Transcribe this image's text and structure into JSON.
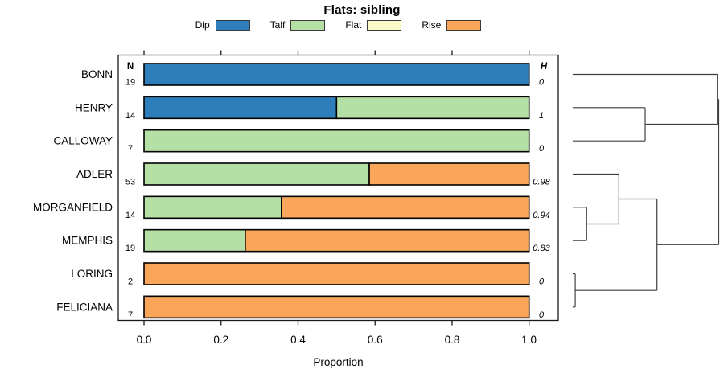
{
  "title": "Flats: sibling",
  "axis": {
    "xlabel": "Proportion",
    "ticks": [
      "0.0",
      "0.2",
      "0.4",
      "0.6",
      "0.8",
      "1.0"
    ],
    "tick_values": [
      0,
      0.2,
      0.4,
      0.6,
      0.8,
      1.0
    ]
  },
  "columns": {
    "n_header": "N",
    "h_header": "H"
  },
  "legend": {
    "items": [
      {
        "label": "Dip",
        "color": "#2F7EBC"
      },
      {
        "label": "Talf",
        "color": "#B4DFA5"
      },
      {
        "label": "Flat",
        "color": "#FBFBC9"
      },
      {
        "label": "Rise",
        "color": "#F9A65A"
      }
    ]
  },
  "colors": {
    "bar_border": "#000000",
    "axis": "#1a1a1a",
    "dendrogram_line": "#3f3f3f",
    "text": "#000000"
  },
  "chart_data": {
    "type": "bar",
    "orientation": "horizontal",
    "stacked": true,
    "title": "Flats: sibling",
    "xlabel": "Proportion",
    "xlim": [
      0,
      1
    ],
    "grid": false,
    "legend_position": "top",
    "categories": [
      "BONN",
      "HENRY",
      "CALLOWAY",
      "ADLER",
      "MORGANFIELD",
      "MEMPHIS",
      "LORING",
      "FELICIANA"
    ],
    "n_values": [
      19,
      14,
      7,
      53,
      14,
      19,
      2,
      7
    ],
    "h_values": [
      "0",
      "1",
      "0",
      "0.98",
      "0.94",
      "0.83",
      "0",
      "0"
    ],
    "series": [
      {
        "name": "Dip",
        "color": "#2F7EBC",
        "values": [
          1,
          0.5,
          0,
          0,
          0,
          0,
          0,
          0
        ]
      },
      {
        "name": "Talf",
        "color": "#B4DFA5",
        "values": [
          0,
          0.5,
          1,
          0.585,
          0.357,
          0.263,
          0,
          0
        ]
      },
      {
        "name": "Flat",
        "color": "#FBFBC9",
        "values": [
          0,
          0,
          0,
          0,
          0,
          0,
          0,
          0
        ]
      },
      {
        "name": "Rise",
        "color": "#F9A65A",
        "values": [
          0,
          0,
          0,
          0.415,
          0.643,
          0.737,
          1,
          1
        ]
      }
    ],
    "dendrogram": {
      "note": "heights are relative merge heights, 0 at leaves, 1 at root",
      "root": {
        "h": 1.0,
        "children": [
          {
            "h": 0.99,
            "children": [
              {
                "leaf": "BONN"
              },
              {
                "h": 0.496,
                "children": [
                  {
                    "leaf": "HENRY"
                  },
                  {
                    "leaf": "CALLOWAY"
                  }
                ]
              }
            ]
          },
          {
            "h": 0.577,
            "children": [
              {
                "h": 0.316,
                "children": [
                  {
                    "leaf": "ADLER"
                  },
                  {
                    "h": 0.095,
                    "children": [
                      {
                        "leaf": "MORGANFIELD"
                      },
                      {
                        "leaf": "MEMPHIS"
                      }
                    ]
                  }
                ]
              },
              {
                "h": 0.017,
                "children": [
                  {
                    "leaf": "LORING"
                  },
                  {
                    "leaf": "FELICIANA"
                  }
                ]
              }
            ]
          }
        ]
      }
    }
  }
}
